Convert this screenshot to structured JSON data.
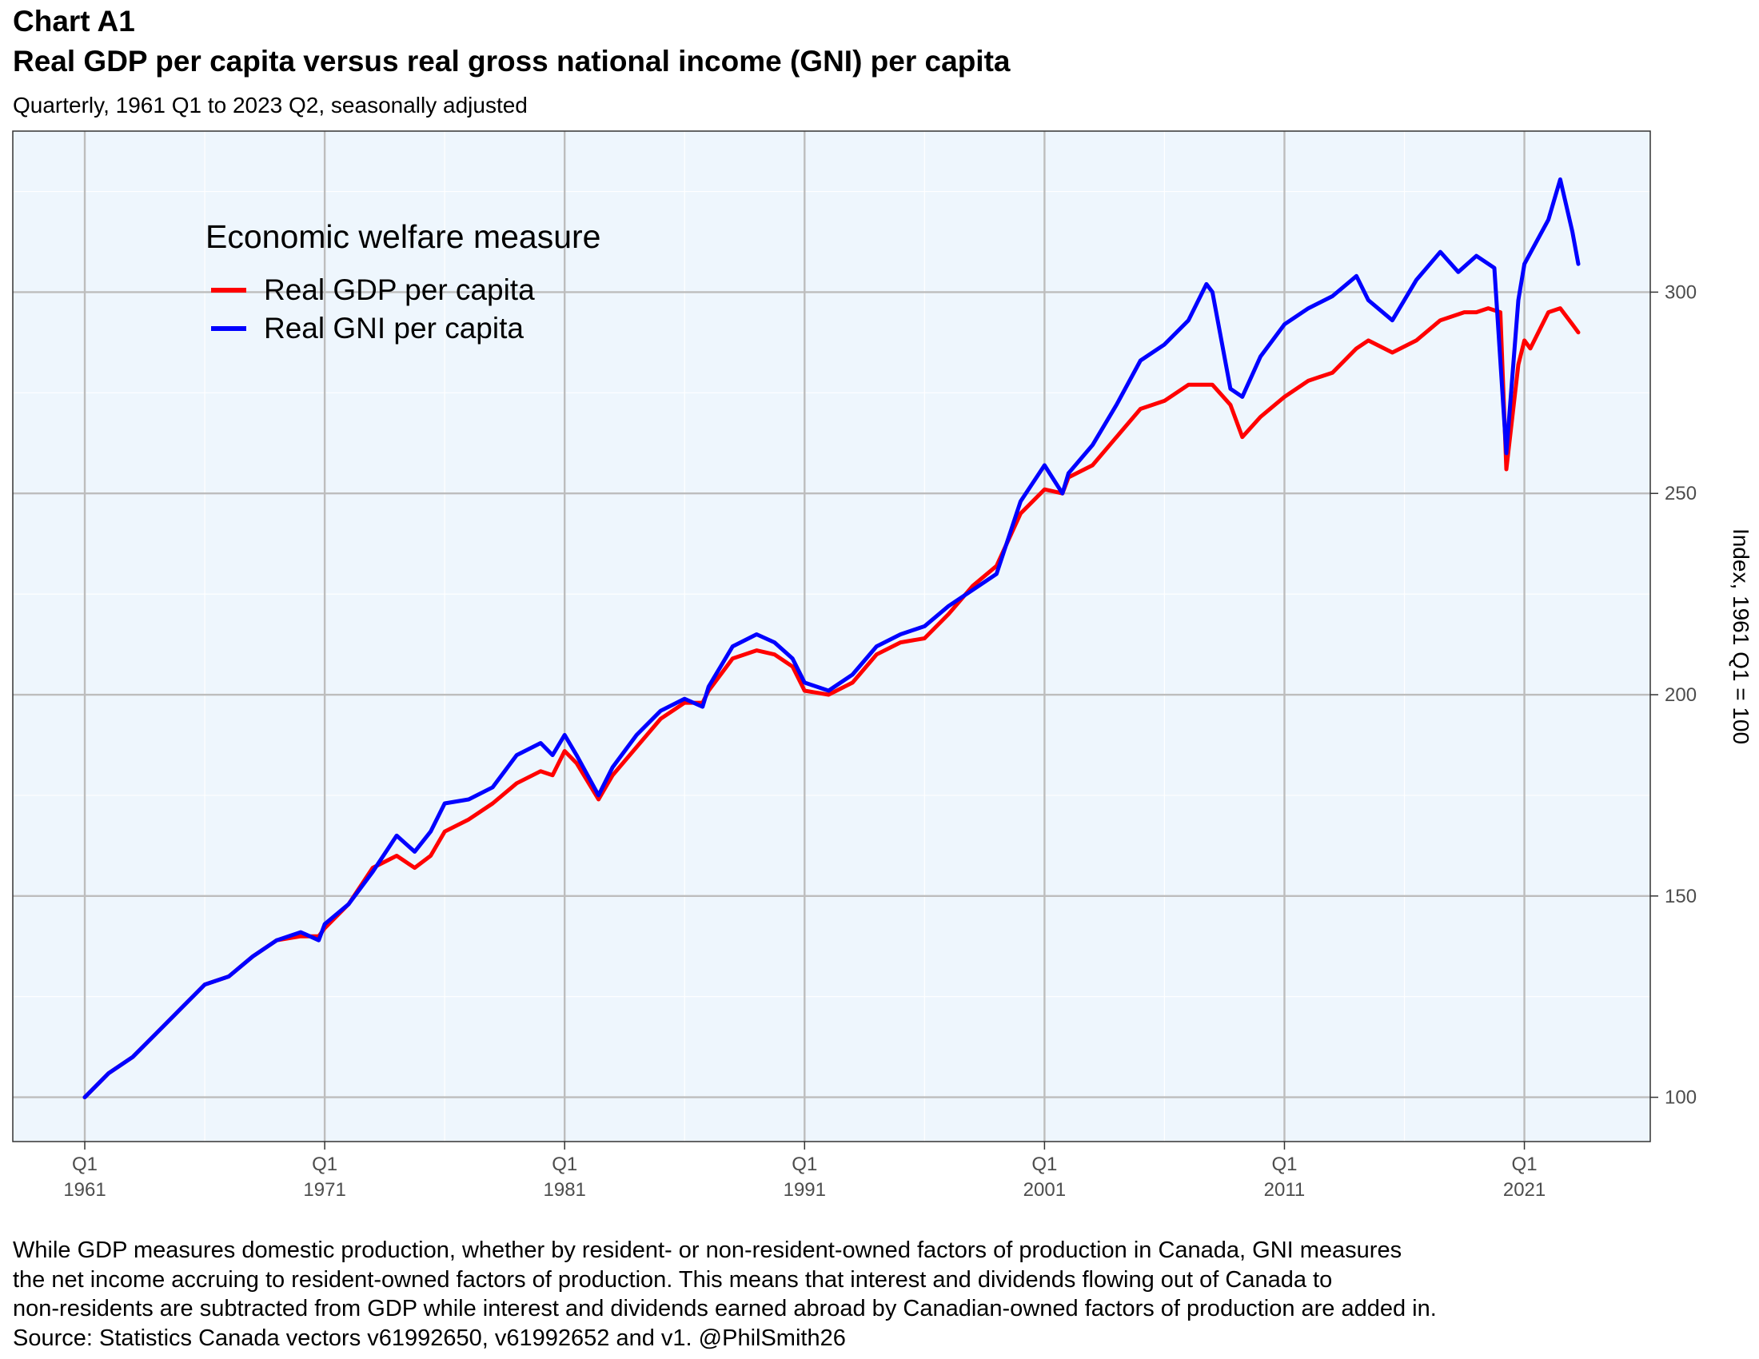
{
  "header": {
    "chart_label": "Chart A1",
    "title": "Real GDP per capita versus real gross national income (GNI) per capita",
    "subtitle": "Quarterly, 1961 Q1 to 2023 Q2, seasonally adjusted"
  },
  "footer": {
    "lines": [
      "While GDP measures domestic production, whether by resident- or non-resident-owned factors of production in Canada, GNI measures",
      "the net income accruing to resident-owned factors of production. This means that interest and dividends flowing out of Canada to",
      "non-residents are subtracted from GDP while interest and dividends earned abroad by Canadian-owned factors of production are added in.",
      "Source: Statistics Canada vectors v61992650, v61992652 and v1. @PhilSmith26"
    ]
  },
  "colors": {
    "panel_background": "#eef6fd",
    "grid_major": "#bdbdbd",
    "grid_minor": "#ffffff",
    "gdp_line": "#ff0000",
    "gni_line": "#0000ff"
  },
  "chart_data": {
    "type": "line",
    "title": "Real GDP per capita versus real gross national income (GNI) per capita",
    "subtitle": "Quarterly, 1961 Q1 to 2023 Q2, seasonally adjusted",
    "xlabel": "",
    "ylabel": "Index, 1961 Q1 = 100",
    "x_axis": {
      "range": [
        "1958-01-01",
        "2026-04-01"
      ],
      "ticks": [
        {
          "quarter": "Q1",
          "year": "1961",
          "date": "1961-01-01"
        },
        {
          "quarter": "Q1",
          "year": "1971",
          "date": "1971-01-01"
        },
        {
          "quarter": "Q1",
          "year": "1981",
          "date": "1981-01-01"
        },
        {
          "quarter": "Q1",
          "year": "1991",
          "date": "1991-01-01"
        },
        {
          "quarter": "Q1",
          "year": "2001",
          "date": "2001-01-01"
        },
        {
          "quarter": "Q1",
          "year": "2011",
          "date": "2011-01-01"
        },
        {
          "quarter": "Q1",
          "year": "2021",
          "date": "2021-01-01"
        }
      ]
    },
    "y_axis": {
      "position": "right",
      "range": [
        89,
        340
      ],
      "ticks": [
        100,
        150,
        200,
        250,
        300
      ]
    },
    "grid": true,
    "legend": {
      "title": "Economic welfare measure",
      "placement": "top-left inside"
    },
    "series": [
      {
        "name": "Real GDP per capita",
        "color": "#ff0000",
        "points": [
          [
            "1961-01-01",
            100
          ],
          [
            "1962-01-01",
            106
          ],
          [
            "1963-01-01",
            110
          ],
          [
            "1964-01-01",
            116
          ],
          [
            "1965-01-01",
            122
          ],
          [
            "1966-01-01",
            128
          ],
          [
            "1967-01-01",
            130
          ],
          [
            "1968-01-01",
            135
          ],
          [
            "1969-01-01",
            139
          ],
          [
            "1970-01-01",
            140
          ],
          [
            "1970-10-01",
            140
          ],
          [
            "1971-01-01",
            142
          ],
          [
            "1972-01-01",
            148
          ],
          [
            "1973-01-01",
            157
          ],
          [
            "1974-01-01",
            160
          ],
          [
            "1974-10-01",
            157
          ],
          [
            "1975-06-01",
            160
          ],
          [
            "1976-01-01",
            166
          ],
          [
            "1977-01-01",
            169
          ],
          [
            "1978-01-01",
            173
          ],
          [
            "1979-01-01",
            178
          ],
          [
            "1980-01-01",
            181
          ],
          [
            "1980-07-01",
            180
          ],
          [
            "1981-01-01",
            186
          ],
          [
            "1981-07-01",
            183
          ],
          [
            "1982-06-01",
            174
          ],
          [
            "1983-01-01",
            180
          ],
          [
            "1984-01-01",
            187
          ],
          [
            "1985-01-01",
            194
          ],
          [
            "1986-01-01",
            198
          ],
          [
            "1986-10-01",
            198
          ],
          [
            "1987-01-01",
            201
          ],
          [
            "1988-01-01",
            209
          ],
          [
            "1989-01-01",
            211
          ],
          [
            "1989-10-01",
            210
          ],
          [
            "1990-07-01",
            207
          ],
          [
            "1991-01-01",
            201
          ],
          [
            "1992-01-01",
            200
          ],
          [
            "1993-01-01",
            203
          ],
          [
            "1994-01-01",
            210
          ],
          [
            "1995-01-01",
            213
          ],
          [
            "1996-01-01",
            214
          ],
          [
            "1997-01-01",
            220
          ],
          [
            "1998-01-01",
            227
          ],
          [
            "1999-01-01",
            232
          ],
          [
            "2000-01-01",
            245
          ],
          [
            "2001-01-01",
            251
          ],
          [
            "2001-10-01",
            250
          ],
          [
            "2002-01-01",
            254
          ],
          [
            "2003-01-01",
            257
          ],
          [
            "2004-01-01",
            264
          ],
          [
            "2005-01-01",
            271
          ],
          [
            "2006-01-01",
            273
          ],
          [
            "2007-01-01",
            277
          ],
          [
            "2008-01-01",
            277
          ],
          [
            "2008-10-01",
            272
          ],
          [
            "2009-04-01",
            264
          ],
          [
            "2010-01-01",
            269
          ],
          [
            "2011-01-01",
            274
          ],
          [
            "2012-01-01",
            278
          ],
          [
            "2013-01-01",
            280
          ],
          [
            "2014-01-01",
            286
          ],
          [
            "2014-07-01",
            288
          ],
          [
            "2015-07-01",
            285
          ],
          [
            "2016-07-01",
            288
          ],
          [
            "2017-07-01",
            293
          ],
          [
            "2018-07-01",
            295
          ],
          [
            "2019-01-01",
            295
          ],
          [
            "2019-07-01",
            296
          ],
          [
            "2020-01-01",
            295
          ],
          [
            "2020-04-01",
            256
          ],
          [
            "2020-10-01",
            282
          ],
          [
            "2021-01-01",
            288
          ],
          [
            "2021-04-01",
            286
          ],
          [
            "2022-01-01",
            295
          ],
          [
            "2022-07-01",
            296
          ],
          [
            "2023-01-01",
            292
          ],
          [
            "2023-04-01",
            290
          ]
        ]
      },
      {
        "name": "Real GNI per capita",
        "color": "#0000ff",
        "points": [
          [
            "1961-01-01",
            100
          ],
          [
            "1962-01-01",
            106
          ],
          [
            "1963-01-01",
            110
          ],
          [
            "1964-01-01",
            116
          ],
          [
            "1965-01-01",
            122
          ],
          [
            "1966-01-01",
            128
          ],
          [
            "1967-01-01",
            130
          ],
          [
            "1968-01-01",
            135
          ],
          [
            "1969-01-01",
            139
          ],
          [
            "1970-01-01",
            141
          ],
          [
            "1970-10-01",
            139
          ],
          [
            "1971-01-01",
            143
          ],
          [
            "1972-01-01",
            148
          ],
          [
            "1973-01-01",
            156
          ],
          [
            "1974-01-01",
            165
          ],
          [
            "1974-10-01",
            161
          ],
          [
            "1975-06-01",
            166
          ],
          [
            "1976-01-01",
            173
          ],
          [
            "1977-01-01",
            174
          ],
          [
            "1978-01-01",
            177
          ],
          [
            "1979-01-01",
            185
          ],
          [
            "1980-01-01",
            188
          ],
          [
            "1980-07-01",
            185
          ],
          [
            "1981-01-01",
            190
          ],
          [
            "1981-07-01",
            185
          ],
          [
            "1982-06-01",
            175
          ],
          [
            "1983-01-01",
            182
          ],
          [
            "1984-01-01",
            190
          ],
          [
            "1985-01-01",
            196
          ],
          [
            "1986-01-01",
            199
          ],
          [
            "1986-10-01",
            197
          ],
          [
            "1987-01-01",
            202
          ],
          [
            "1988-01-01",
            212
          ],
          [
            "1989-01-01",
            215
          ],
          [
            "1989-10-01",
            213
          ],
          [
            "1990-07-01",
            209
          ],
          [
            "1991-01-01",
            203
          ],
          [
            "1992-01-01",
            201
          ],
          [
            "1993-01-01",
            205
          ],
          [
            "1994-01-01",
            212
          ],
          [
            "1995-01-01",
            215
          ],
          [
            "1996-01-01",
            217
          ],
          [
            "1997-01-01",
            222
          ],
          [
            "1998-01-01",
            226
          ],
          [
            "1999-01-01",
            230
          ],
          [
            "2000-01-01",
            248
          ],
          [
            "2001-01-01",
            257
          ],
          [
            "2001-10-01",
            250
          ],
          [
            "2002-01-01",
            255
          ],
          [
            "2003-01-01",
            262
          ],
          [
            "2004-01-01",
            272
          ],
          [
            "2005-01-01",
            283
          ],
          [
            "2006-01-01",
            287
          ],
          [
            "2007-01-01",
            293
          ],
          [
            "2007-10-01",
            302
          ],
          [
            "2008-01-01",
            300
          ],
          [
            "2008-10-01",
            276
          ],
          [
            "2009-04-01",
            274
          ],
          [
            "2010-01-01",
            284
          ],
          [
            "2011-01-01",
            292
          ],
          [
            "2012-01-01",
            296
          ],
          [
            "2013-01-01",
            299
          ],
          [
            "2014-01-01",
            304
          ],
          [
            "2014-07-01",
            298
          ],
          [
            "2015-07-01",
            293
          ],
          [
            "2016-07-01",
            303
          ],
          [
            "2017-07-01",
            310
          ],
          [
            "2018-04-01",
            305
          ],
          [
            "2019-01-01",
            309
          ],
          [
            "2019-10-01",
            306
          ],
          [
            "2020-04-01",
            260
          ],
          [
            "2020-10-01",
            298
          ],
          [
            "2021-01-01",
            307
          ],
          [
            "2022-01-01",
            318
          ],
          [
            "2022-07-01",
            328
          ],
          [
            "2023-01-01",
            315
          ],
          [
            "2023-04-01",
            307
          ]
        ]
      }
    ]
  }
}
